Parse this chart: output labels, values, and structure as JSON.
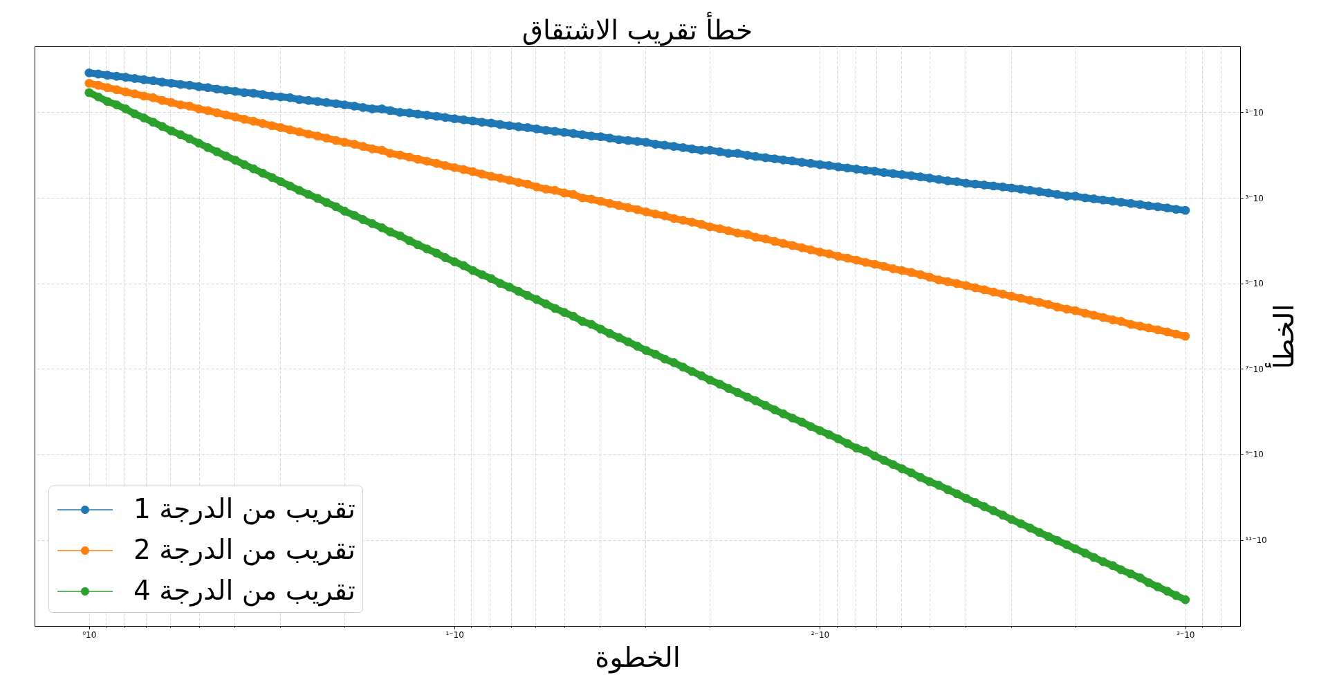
{
  "chart_data": {
    "type": "line",
    "title": "خطأ تقريب الاشتقاق",
    "xlabel": "الخطوة",
    "ylabel": "الخطأ",
    "x": [
      1,
      0.944,
      0.891,
      0.841,
      0.794,
      0.75,
      0.708,
      0.668,
      0.631,
      0.596,
      0.562,
      0.531,
      0.501,
      0.473,
      0.447,
      0.422,
      0.398,
      0.376,
      0.355,
      0.335,
      0.316,
      0.299,
      0.282,
      0.266,
      0.251,
      0.237,
      0.224,
      0.211,
      0.2,
      0.188,
      0.178,
      0.168,
      0.158,
      0.15,
      0.141,
      0.133,
      0.126,
      0.119,
      0.112,
      0.106,
      0.1,
      0.0944,
      0.0891,
      0.0841,
      0.0794,
      0.075,
      0.0708,
      0.0668,
      0.0631,
      0.0596,
      0.0562,
      0.0531,
      0.0501,
      0.0473,
      0.0447,
      0.0422,
      0.0398,
      0.0376,
      0.0355,
      0.0335,
      0.0316,
      0.0299,
      0.0282,
      0.0266,
      0.0251,
      0.0237,
      0.0224,
      0.0211,
      0.02,
      0.0188,
      0.0178,
      0.0168,
      0.0158,
      0.015,
      0.0141,
      0.0133,
      0.0126,
      0.0119,
      0.0112,
      0.0106,
      0.01,
      0.00944,
      0.00891,
      0.00841,
      0.00794,
      0.0075,
      0.00708,
      0.00668,
      0.00631,
      0.00596,
      0.00562,
      0.00531,
      0.00501,
      0.00473,
      0.00447,
      0.00422,
      0.00398,
      0.00376,
      0.00355,
      0.00335,
      0.00316,
      0.00299,
      0.00282,
      0.00266,
      0.00251,
      0.00237,
      0.00224,
      0.00211,
      0.002,
      0.00188,
      0.00178,
      0.00168,
      0.00158,
      0.0015,
      0.00141,
      0.00133,
      0.00126,
      0.00119,
      0.00112,
      0.00106,
      0.001
    ],
    "series": [
      {
        "name": "تقريب من الدرجة 1",
        "color": "#1f77b4",
        "values": [
          0.84,
          0.79,
          0.74,
          0.7,
          0.66,
          0.62,
          0.58,
          0.55,
          0.51,
          0.48,
          0.45,
          0.43,
          0.4,
          0.38,
          0.35,
          0.33,
          0.31,
          0.29,
          0.28,
          0.26,
          0.24,
          0.23,
          0.22,
          0.2,
          0.19,
          0.18,
          0.17,
          0.16,
          0.15,
          0.14,
          0.13,
          0.12,
          0.12,
          0.11,
          0.1,
          0.097,
          0.091,
          0.086,
          0.081,
          0.076,
          0.071,
          0.067,
          0.063,
          0.059,
          0.056,
          0.052,
          0.049,
          0.046,
          0.044,
          0.041,
          0.038,
          0.036,
          0.034,
          0.032,
          0.03,
          0.028,
          0.027,
          0.025,
          0.023,
          0.022,
          0.021,
          0.02,
          0.018,
          0.017,
          0.016,
          0.015,
          0.014,
          0.013,
          0.013,
          0.012,
          0.011,
          0.011,
          0.0099,
          0.0093,
          0.0087,
          0.0082,
          0.0077,
          0.0073,
          0.0068,
          0.0064,
          0.006,
          0.0057,
          0.0053,
          0.005,
          0.0047,
          0.0044,
          0.0042,
          0.0039,
          0.0037,
          0.0035,
          0.0033,
          0.0031,
          0.0029,
          0.0027,
          0.0025,
          0.0024,
          0.0022,
          0.0021,
          0.002,
          0.0019,
          0.0018,
          0.0017,
          0.0016,
          0.0015,
          0.0014,
          0.0013,
          0.0012,
          0.0011,
          0.0011,
          0.001,
          0.00095,
          0.00089,
          0.00084,
          0.00079,
          0.00074,
          0.0007,
          0.00065,
          0.00062,
          0.00058,
          0.00054,
          0.00051
        ]
      },
      {
        "name": "تقريب من الدرجة 2",
        "color": "#ff7f0e",
        "values": [
          0.48,
          0.43,
          0.38,
          0.34,
          0.3,
          0.27,
          0.24,
          0.22,
          0.19,
          0.17,
          0.15,
          0.14,
          0.12,
          0.11,
          0.098,
          0.087,
          0.078,
          0.069,
          0.062,
          0.055,
          0.049,
          0.044,
          0.039,
          0.035,
          0.031,
          0.028,
          0.025,
          0.022,
          0.02,
          0.018,
          0.016,
          0.014,
          0.013,
          0.011,
          0.01,
          0.009,
          0.008,
          0.0072,
          0.0064,
          0.0057,
          0.0051,
          0.0046,
          0.0041,
          0.0036,
          0.0032,
          0.0029,
          0.0026,
          0.0023,
          0.0021,
          0.0018,
          0.0016,
          0.0015,
          0.0013,
          0.0012,
          0.001,
          0.00093,
          0.00083,
          0.00074,
          0.00066,
          0.00059,
          0.00053,
          0.00047,
          0.00042,
          0.00038,
          0.00033,
          0.0003,
          0.00027,
          0.00024,
          0.00021,
          0.00019,
          0.00017,
          0.00015,
          0.00014,
          0.00012,
          0.00011,
          9.6e-05,
          8.6e-05,
          7.7e-05,
          6.8e-05,
          6.1e-05,
          5.4e-05,
          4.9e-05,
          4.3e-05,
          3.9e-05,
          3.5e-05,
          3.1e-05,
          2.8e-05,
          2.5e-05,
          2.2e-05,
          2e-05,
          1.8e-05,
          1.6e-05,
          1.4e-05,
          1.2e-05,
          1.1e-05,
          9.9e-06,
          8.9e-06,
          7.9e-06,
          7.1e-06,
          6.3e-06,
          5.6e-06,
          5e-06,
          4.5e-06,
          4e-06,
          3.6e-06,
          3.2e-06,
          2.8e-06,
          2.5e-06,
          2.3e-06,
          2e-06,
          1.8e-06,
          1.6e-06,
          1.4e-06,
          1.3e-06,
          1.1e-06,
          1e-06,
          9.1e-07,
          8.2e-07,
          7.3e-07,
          6.5e-07,
          5.8e-07
        ]
      },
      {
        "name": "تقريب من الدرجة 4",
        "color": "#2ca02c",
        "values": [
          0.29,
          0.23,
          0.18,
          0.15,
          0.12,
          0.092,
          0.074,
          0.059,
          0.047,
          0.037,
          0.03,
          0.024,
          0.019,
          0.015,
          0.012,
          0.0095,
          0.0076,
          0.006,
          0.0048,
          0.0038,
          0.003,
          0.0024,
          0.0019,
          0.0015,
          0.0012,
          0.00098,
          0.00078,
          0.00062,
          0.00049,
          0.00039,
          0.00031,
          0.00025,
          0.0002,
          0.00016,
          0.00013,
          0.0001,
          8e-05,
          6.4e-05,
          5.1e-05,
          4e-05,
          3.2e-05,
          2.6e-05,
          2e-05,
          1.6e-05,
          1.3e-05,
          1e-05,
          8.2e-06,
          6.5e-06,
          5.2e-06,
          4.2e-06,
          3.3e-06,
          2.6e-06,
          2.1e-06,
          1.7e-06,
          1.3e-06,
          1.1e-06,
          8.5e-07,
          6.7e-07,
          5.4e-07,
          4.3e-07,
          3.4e-07,
          2.7e-07,
          2.2e-07,
          1.7e-07,
          1.4e-07,
          1.1e-07,
          8.7e-08,
          6.9e-08,
          5.5e-08,
          4.4e-08,
          3.5e-08,
          2.8e-08,
          2.2e-08,
          1.8e-08,
          1.4e-08,
          1.1e-08,
          8.9e-09,
          7.1e-09,
          5.7e-09,
          4.5e-09,
          3.6e-09,
          2.9e-09,
          2.3e-09,
          1.8e-09,
          1.4e-09,
          1.2e-09,
          9.2e-10,
          7.3e-10,
          5.8e-10,
          4.6e-10,
          3.7e-10,
          2.9e-10,
          2.3e-10,
          1.9e-10,
          1.5e-10,
          1.2e-10,
          9.4e-11,
          7.5e-11,
          6e-11,
          4.8e-11,
          3.8e-11,
          3e-11,
          2.4e-11,
          1.9e-11,
          1.5e-11,
          1.2e-11,
          9.7e-12,
          7.7e-12,
          6.2e-12,
          4.9e-12,
          3.9e-12,
          3.1e-12,
          2.5e-12,
          2e-12,
          1.6e-12,
          1.3e-12,
          1e-12,
          8e-13,
          6.3e-13,
          5e-13,
          4e-13
        ]
      }
    ],
    "xlim": [
      1.41,
      0.000708
    ],
    "ylim": [
      9.7e-14,
      3.5
    ],
    "xticks": [
      {
        "value": 1,
        "label": "10⁰"
      },
      {
        "value": 0.9,
        "label": null
      },
      {
        "value": 0.8,
        "label": null
      },
      {
        "value": 0.7,
        "label": null
      },
      {
        "value": 0.6,
        "label": null
      },
      {
        "value": 0.5,
        "label": null
      },
      {
        "value": 0.4,
        "label": null
      },
      {
        "value": 0.3,
        "label": null
      },
      {
        "value": 0.2,
        "label": null
      },
      {
        "value": 0.1,
        "label": "10⁻¹"
      },
      {
        "value": 0.09,
        "label": null
      },
      {
        "value": 0.08,
        "label": null
      },
      {
        "value": 0.07,
        "label": null
      },
      {
        "value": 0.06,
        "label": null
      },
      {
        "value": 0.05,
        "label": null
      },
      {
        "value": 0.04,
        "label": null
      },
      {
        "value": 0.03,
        "label": null
      },
      {
        "value": 0.02,
        "label": null
      },
      {
        "value": 0.01,
        "label": "10⁻²"
      },
      {
        "value": 0.009,
        "label": null
      },
      {
        "value": 0.008,
        "label": null
      },
      {
        "value": 0.007,
        "label": null
      },
      {
        "value": 0.006,
        "label": null
      },
      {
        "value": 0.005,
        "label": null
      },
      {
        "value": 0.004,
        "label": null
      },
      {
        "value": 0.003,
        "label": null
      },
      {
        "value": 0.002,
        "label": null
      },
      {
        "value": 0.001,
        "label": "10⁻³"
      },
      {
        "value": 0.0009,
        "label": null
      },
      {
        "value": 0.0008,
        "label": null
      }
    ],
    "yticks": [
      {
        "value": 0.1,
        "label": "10⁻¹"
      },
      {
        "value": 0.001,
        "label": "10⁻³"
      },
      {
        "value": 1e-05,
        "label": "10⁻⁵"
      },
      {
        "value": 1e-07,
        "label": "10⁻⁷"
      },
      {
        "value": 1e-09,
        "label": "10⁻⁹"
      },
      {
        "value": 1e-11,
        "label": "10⁻¹¹"
      }
    ],
    "log": "xy",
    "grid": true,
    "legend": "bottom left",
    "marker": "circle",
    "line_style": "solid"
  }
}
